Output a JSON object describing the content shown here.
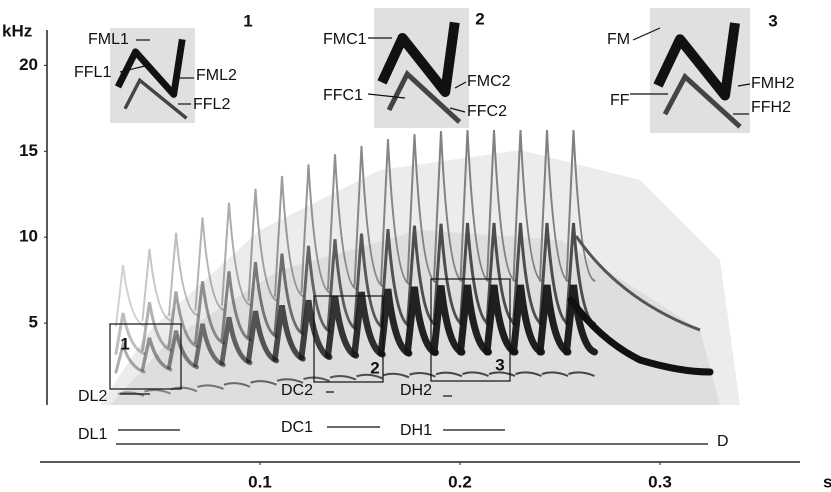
{
  "chart_data": {
    "type": "spectrogram",
    "y_label": "kHz",
    "x_label": "s",
    "ylim": [
      0,
      22
    ],
    "yticks": [
      5,
      10,
      15,
      20
    ],
    "xlim": [
      -0.01,
      0.37
    ],
    "xticks": [
      0.1,
      0.2,
      0.3
    ],
    "panels": [
      "1",
      "2",
      "3"
    ],
    "annotations": [
      "FML1",
      "FFL1",
      "FML2",
      "FFL2",
      "FMC1",
      "FFC1",
      "FMC2",
      "FFC2",
      "FM",
      "FF",
      "FMH2",
      "FFH2",
      "DL2",
      "DC2",
      "DH2",
      "DL1",
      "DC1",
      "DH1",
      "D"
    ]
  }
}
